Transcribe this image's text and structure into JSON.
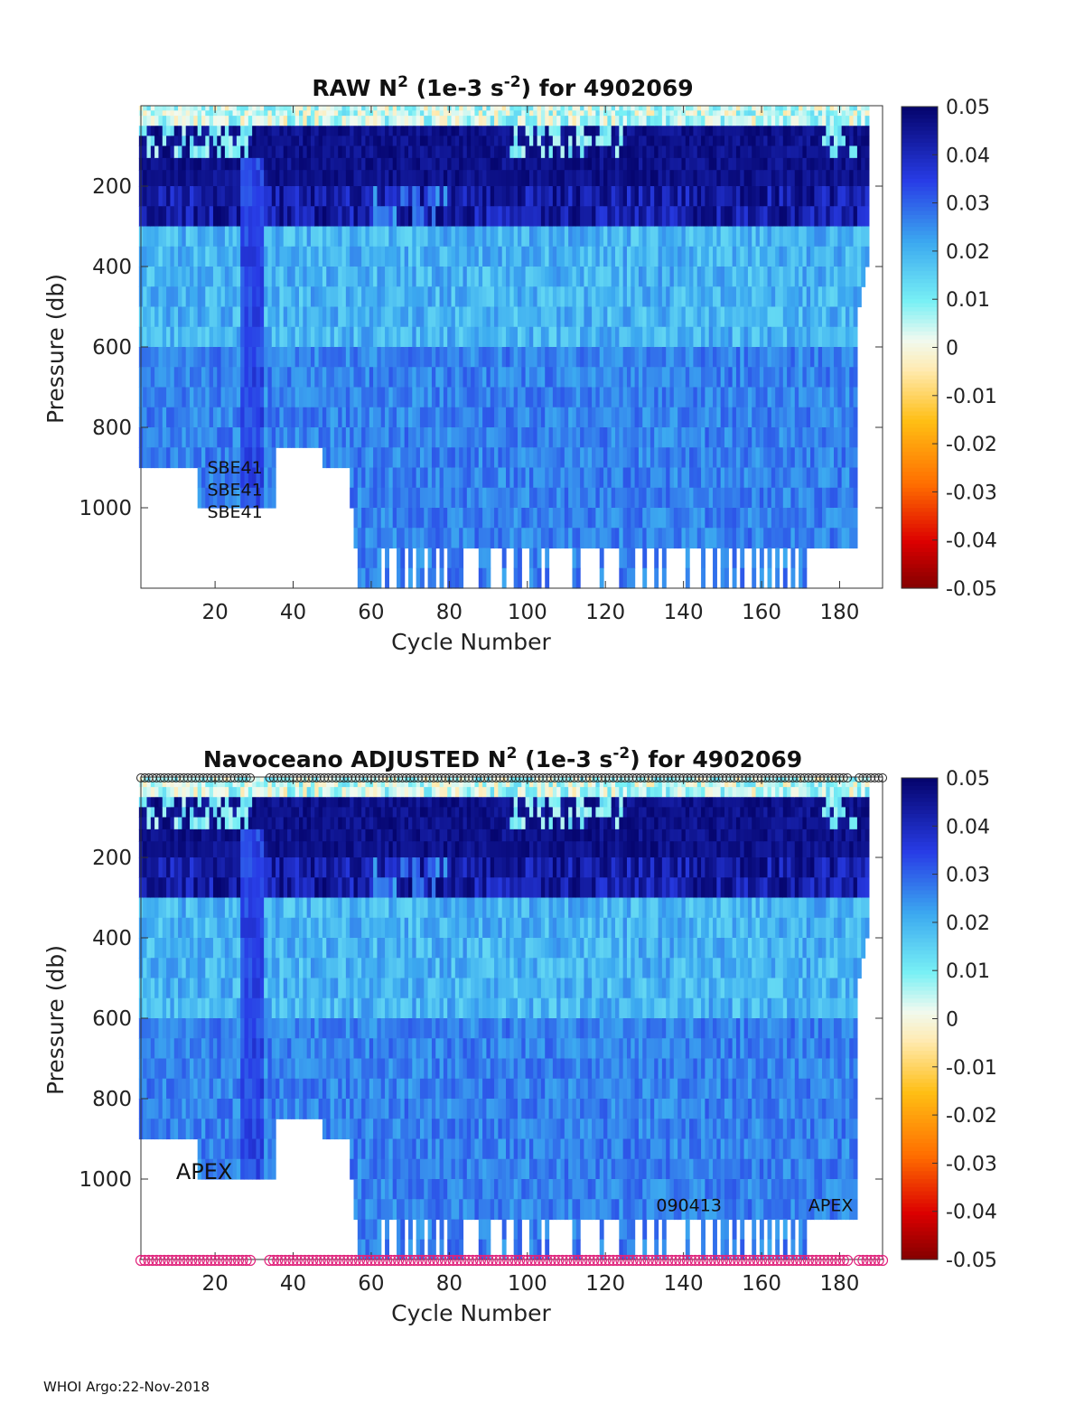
{
  "footer": "WHOI Argo:22-Nov-2018",
  "chart_data": [
    {
      "type": "heatmap",
      "title": {
        "prefix": "RAW N",
        "sup1": "2",
        "mid": " (1e-3 s",
        "sup2": "-2",
        "suffix": ") for 4902069"
      },
      "xlabel": "Cycle Number",
      "ylabel": "Pressure (db)",
      "xlim": [
        1,
        191
      ],
      "ylim": [
        1200,
        0
      ],
      "xticks": [
        20,
        40,
        60,
        80,
        100,
        120,
        140,
        160,
        180
      ],
      "yticks": [
        200,
        400,
        600,
        800,
        1000
      ],
      "colorbar": {
        "range": [
          -0.05,
          0.05
        ],
        "ticks": [
          "0.05",
          "0.04",
          "0.03",
          "0.02",
          "0.01",
          "0",
          "-0.01",
          "-0.02",
          "-0.03",
          "-0.04",
          "-0.05"
        ]
      },
      "annotations": [
        {
          "text": "SBE41",
          "x": 18,
          "y": 915
        },
        {
          "text": "SBE41",
          "x": 18,
          "y": 970
        },
        {
          "text": "SBE41",
          "x": 18,
          "y": 1025
        }
      ],
      "qc_markers": false
    },
    {
      "type": "heatmap",
      "title": {
        "prefix": "Navoceano  ADJUSTED N",
        "sup1": "2",
        "mid": " (1e-3 s",
        "sup2": "-2",
        "suffix": ") for 4902069"
      },
      "xlabel": "Cycle Number",
      "ylabel": "Pressure (db)",
      "xlim": [
        1,
        191
      ],
      "ylim": [
        1200,
        0
      ],
      "xticks": [
        20,
        40,
        60,
        80,
        100,
        120,
        140,
        160,
        180
      ],
      "yticks": [
        200,
        400,
        600,
        800,
        1000
      ],
      "colorbar": {
        "range": [
          -0.05,
          0.05
        ],
        "ticks": [
          "0.05",
          "0.04",
          "0.03",
          "0.02",
          "0.01",
          "0",
          "-0.01",
          "-0.02",
          "-0.03",
          "-0.04",
          "-0.05"
        ]
      },
      "annotations": [
        {
          "text": "APEX",
          "x": 10,
          "y": 1000
        },
        {
          "text": "090413",
          "x": 133,
          "y": 1080
        },
        {
          "text": "APEX",
          "x": 172,
          "y": 1080
        }
      ],
      "qc_markers": true
    }
  ]
}
